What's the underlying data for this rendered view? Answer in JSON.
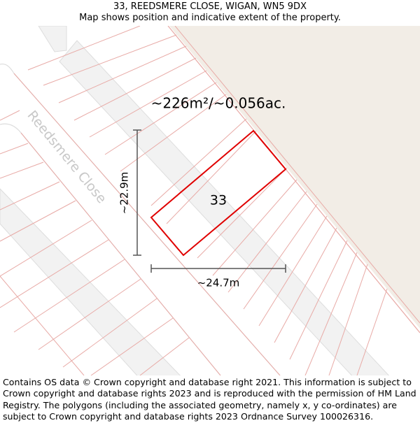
{
  "header": {
    "address": "33, REEDSMERE CLOSE, WIGAN, WN5 9DX",
    "subtitle": "Map shows position and indicative extent of the property."
  },
  "map": {
    "area_label": "~226m²/~0.056ac.",
    "plot_number": "33",
    "street_name": "Reedsmere Close",
    "height_label": "~22.9m",
    "width_label": "~24.7m",
    "colors": {
      "boundary": "#e8aaa6",
      "building": "#f2f2f2",
      "building_edge": "#dddddd",
      "open_land": "#f2ede6",
      "plot_outline": "#e00000",
      "measure": "#555555"
    }
  },
  "footer": {
    "copyright": "Contains OS data © Crown copyright and database right 2021. This information is subject to Crown copyright and database rights 2023 and is reproduced with the permission of HM Land Registry. The polygons (including the associated geometry, namely x, y co-ordinates) are subject to Crown copyright and database rights 2023 Ordnance Survey 100026316."
  }
}
